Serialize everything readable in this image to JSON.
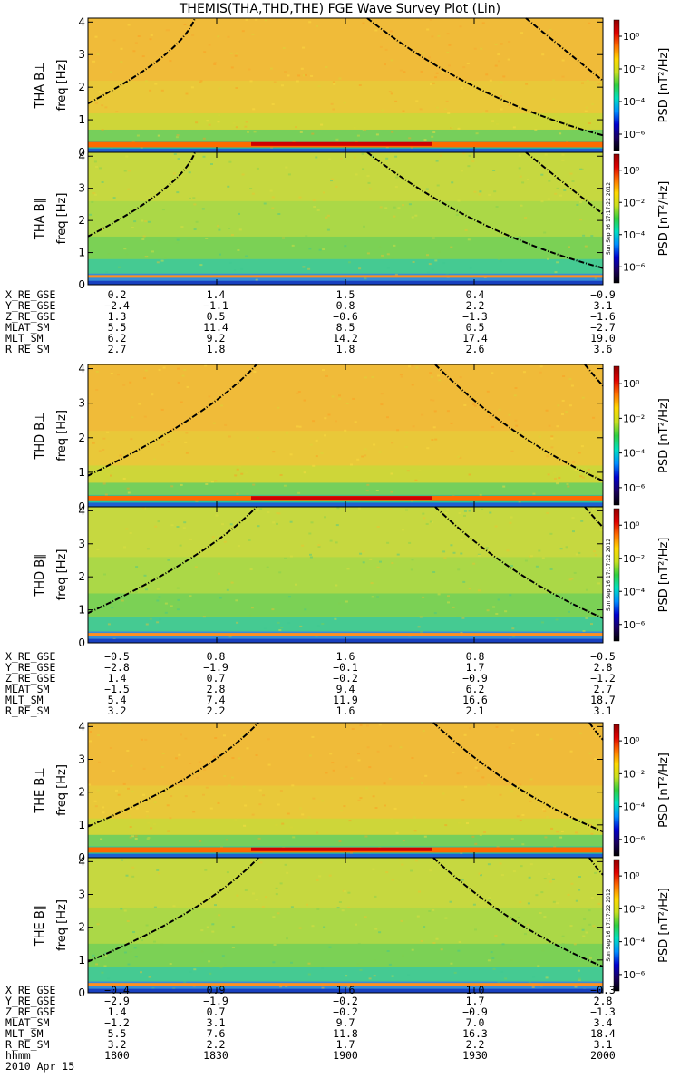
{
  "title": "THEMIS(THA,THD,THE) FGE Wave Survey Plot (Lin)",
  "chart_data": {
    "type": "heatmap",
    "x_tick_labels": [
      "1800",
      "1830",
      "1900",
      "1930",
      "2000"
    ],
    "x_tick_values": [
      1800,
      1830,
      1900,
      1930,
      2000
    ],
    "y_range": [
      0,
      4
    ],
    "y_tick_labels": [
      "0",
      "1",
      "2",
      "3",
      "4"
    ],
    "ylabel_suffix": "freq [Hz]",
    "colorbar": {
      "label": "PSD [nT²/Hz]",
      "log_ticks": [
        -6,
        -4,
        -2,
        0
      ],
      "ticks": [
        "10⁻⁶",
        "10⁻⁴",
        "10⁻²",
        "10⁰"
      ],
      "colors": [
        "#000000",
        "#1a0060",
        "#0000d0",
        "#0090ff",
        "#00e0c0",
        "#30d040",
        "#c8e020",
        "#ffd800",
        "#ff7000",
        "#e00000",
        "#900000"
      ]
    },
    "timestamp": "Sun Sep 16 17:17:22 2012",
    "panels": [
      {
        "probe": "THA",
        "component": "B⊥",
        "label": "THA B⊥"
      },
      {
        "probe": "THA",
        "component": "B∥",
        "label": "THA B∥"
      },
      {
        "probe": "THD",
        "component": "B⊥",
        "label": "THD B⊥"
      },
      {
        "probe": "THD",
        "component": "B∥",
        "label": "THD B∥"
      },
      {
        "probe": "THE",
        "component": "B⊥",
        "label": "THE B⊥"
      },
      {
        "probe": "THE",
        "component": "B∥",
        "label": "THE B∥"
      }
    ]
  },
  "orbit_labels": [
    "X_RE_GSE",
    "Y_RE_GSE",
    "Z_RE_GSE",
    "MLAT_SM",
    "MLT_SM",
    "R_RE_SM"
  ],
  "orbit_tables": [
    {
      "probe": "THA",
      "rows": [
        [
          "0.2",
          "1.4",
          "1.5",
          "0.4",
          "−0.9"
        ],
        [
          "−2.4",
          "−1.1",
          "0.8",
          "2.2",
          "3.1"
        ],
        [
          "1.3",
          "0.5",
          "−0.6",
          "−1.3",
          "−1.6"
        ],
        [
          "5.5",
          "11.4",
          "8.5",
          "0.5",
          "−2.7"
        ],
        [
          "6.2",
          "9.2",
          "14.2",
          "17.4",
          "19.0"
        ],
        [
          "2.7",
          "1.8",
          "1.8",
          "2.6",
          "3.6"
        ]
      ]
    },
    {
      "probe": "THD",
      "rows": [
        [
          "−0.5",
          "0.8",
          "1.6",
          "0.8",
          "−0.5"
        ],
        [
          "−2.8",
          "−1.9",
          "−0.1",
          "1.7",
          "2.8"
        ],
        [
          "1.4",
          "0.7",
          "−0.2",
          "−0.9",
          "−1.2"
        ],
        [
          "−1.5",
          "2.8",
          "9.4",
          "6.2",
          "2.7"
        ],
        [
          "5.4",
          "7.4",
          "11.9",
          "16.6",
          "18.7"
        ],
        [
          "3.2",
          "2.2",
          "1.6",
          "2.1",
          "3.1"
        ]
      ]
    },
    {
      "probe": "THE",
      "rows": [
        [
          "−0.4",
          "0.9",
          "1.6",
          "1.0",
          "−0.3"
        ],
        [
          "−2.9",
          "−1.9",
          "−0.2",
          "1.7",
          "2.8"
        ],
        [
          "1.4",
          "0.7",
          "−0.2",
          "−0.9",
          "−1.3"
        ],
        [
          "−1.2",
          "3.1",
          "9.7",
          "7.0",
          "3.4"
        ],
        [
          "5.5",
          "7.6",
          "11.8",
          "16.3",
          "18.4"
        ],
        [
          "3.2",
          "2.2",
          "1.7",
          "2.2",
          "3.1"
        ]
      ]
    }
  ],
  "time_axis": {
    "label": "hhmm",
    "ticks": [
      "1800",
      "1830",
      "1900",
      "1930",
      "2000"
    ],
    "date": "2010 Apr 15"
  }
}
